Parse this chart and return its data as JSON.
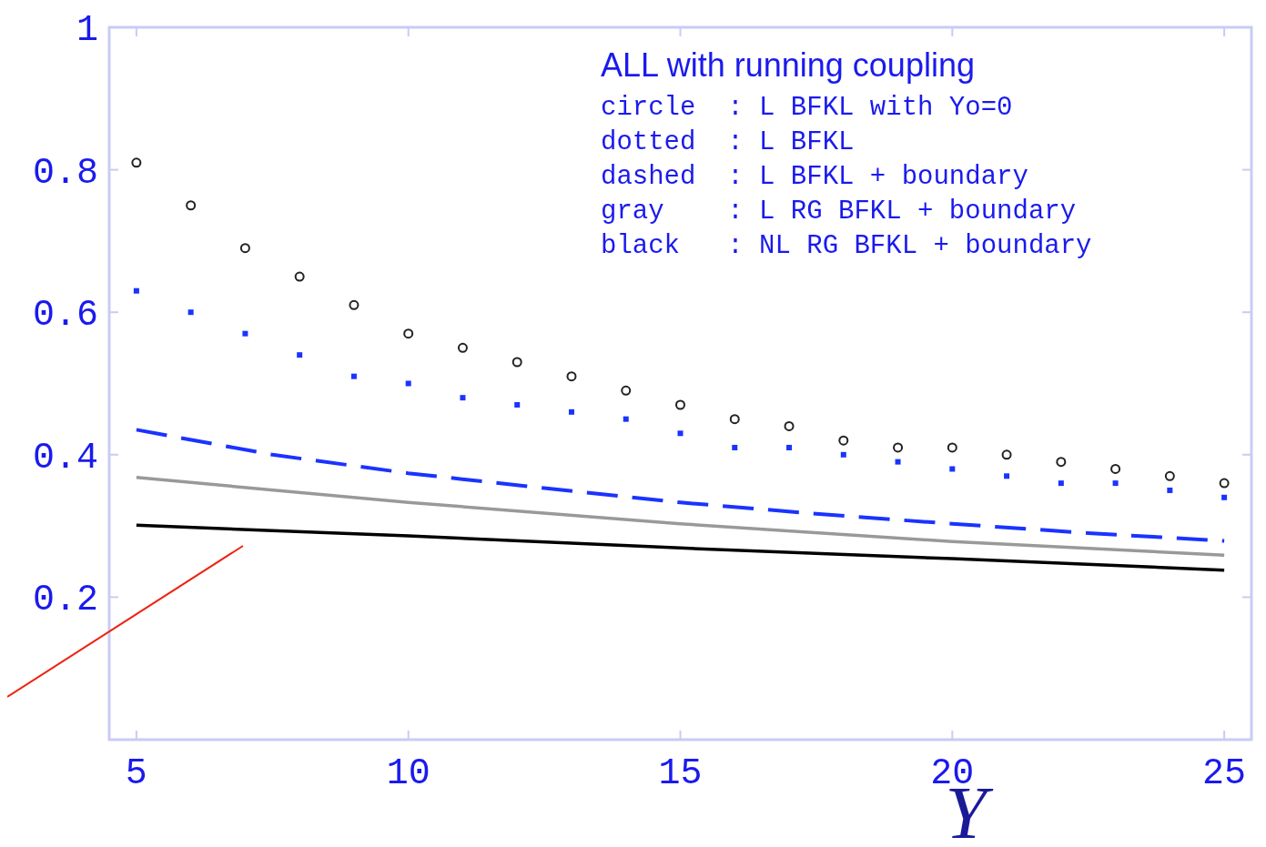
{
  "chart_data": {
    "type": "line",
    "xlabel": "Y",
    "xlim": [
      4.5,
      25.5
    ],
    "ylim": [
      0,
      1
    ],
    "xticks": [
      5,
      10,
      15,
      20,
      25
    ],
    "yticks": [
      0.2,
      0.4,
      0.6,
      0.8,
      1
    ],
    "grid": false,
    "annotations": [
      "ALL with running coupling",
      "circle  : L BFKL with Yo=0",
      "dotted  : L BFKL",
      "dashed  : L BFKL + boundary",
      "gray    : L RG BFKL + boundary",
      "black   : NL RG BFKL + boundary"
    ],
    "series": [
      {
        "type": "scatter",
        "marker": "circle",
        "color": "#222222",
        "x": [
          5,
          6,
          7,
          8,
          9,
          10,
          11,
          12,
          13,
          14,
          15,
          16,
          17,
          18,
          19,
          20,
          21,
          22,
          23,
          24,
          25
        ],
        "values": [
          0.81,
          0.75,
          0.69,
          0.65,
          0.61,
          0.57,
          0.55,
          0.53,
          0.51,
          0.49,
          0.47,
          0.45,
          0.44,
          0.42,
          0.41,
          0.41,
          0.4,
          0.39,
          0.38,
          0.37,
          0.36
        ]
      },
      {
        "type": "scatter",
        "marker": "square",
        "color": "#1a33ff",
        "x": [
          5,
          6,
          7,
          8,
          9,
          10,
          11,
          12,
          13,
          14,
          15,
          16,
          17,
          18,
          19,
          20,
          21,
          22,
          23,
          24,
          25
        ],
        "values": [
          0.63,
          0.6,
          0.57,
          0.54,
          0.51,
          0.5,
          0.48,
          0.47,
          0.46,
          0.45,
          0.43,
          0.41,
          0.41,
          0.4,
          0.39,
          0.38,
          0.37,
          0.36,
          0.36,
          0.35,
          0.34
        ]
      },
      {
        "line_style": "dashed",
        "color": "#1a33ff",
        "x": [
          5,
          7.5,
          10,
          12.5,
          15,
          17.5,
          20,
          22.5,
          25
        ],
        "values": [
          0.435,
          0.4,
          0.374,
          0.353,
          0.333,
          0.317,
          0.303,
          0.29,
          0.279
        ]
      },
      {
        "line_style": "solid",
        "color": "#999999",
        "x": [
          5,
          10,
          15,
          20,
          25
        ],
        "values": [
          0.368,
          0.333,
          0.303,
          0.278,
          0.259
        ]
      },
      {
        "line_style": "solid",
        "color": "#000000",
        "x": [
          5,
          10,
          15,
          20,
          25
        ],
        "values": [
          0.301,
          0.286,
          0.269,
          0.254,
          0.238
        ]
      }
    ]
  }
}
